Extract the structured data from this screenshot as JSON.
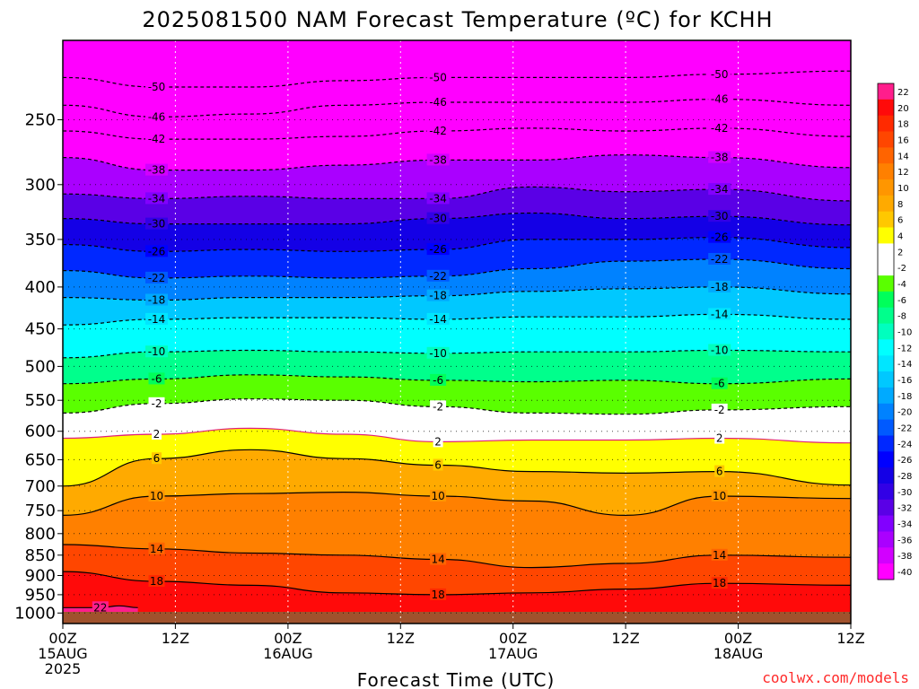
{
  "chart_data": {
    "type": "heatmap",
    "title": "2025081500 NAM Forecast Temperature (ºC) for KCHH",
    "xlabel": "Forecast Time (UTC)",
    "ylabel": "",
    "xlim": [
      0,
      84
    ],
    "ylim": [
      1030,
      200
    ],
    "y_scale": "log-pressure",
    "x_ticks": [
      {
        "x": 0,
        "lines": [
          "00Z",
          "15AUG",
          "2025"
        ]
      },
      {
        "x": 12,
        "lines": [
          "12Z"
        ]
      },
      {
        "x": 24,
        "lines": [
          "00Z",
          "16AUG"
        ]
      },
      {
        "x": 36,
        "lines": [
          "12Z"
        ]
      },
      {
        "x": 48,
        "lines": [
          "00Z",
          "17AUG"
        ]
      },
      {
        "x": 60,
        "lines": [
          "12Z"
        ]
      },
      {
        "x": 72,
        "lines": [
          "00Z",
          "18AUG"
        ]
      },
      {
        "x": 84,
        "lines": [
          "12Z"
        ]
      }
    ],
    "y_ticks": [
      250,
      300,
      350,
      400,
      450,
      500,
      550,
      600,
      650,
      700,
      750,
      800,
      850,
      900,
      950,
      1000
    ],
    "grid": true,
    "colorbar": {
      "placement": "right",
      "levels": [
        "22",
        "20",
        "18",
        "16",
        "14",
        "12",
        "10",
        "8",
        "6",
        "4",
        "2",
        "-2",
        "-4",
        "-6",
        "-8",
        "-10",
        "-12",
        "-14",
        "-16",
        "-18",
        "-20",
        "-22",
        "-24",
        "-26",
        "-28",
        "-30",
        "-32",
        "-34",
        "-36",
        "-38",
        "-40"
      ],
      "colors": [
        "#ff1e8c",
        "#ff0a0a",
        "#ff2a00",
        "#ff4600",
        "#ff6400",
        "#ff8000",
        "#ff9600",
        "#ffaa00",
        "#ffc800",
        "#ffff00",
        "#ffffff",
        "#ffffff",
        "#5aff00",
        "#00ff5a",
        "#00ff8c",
        "#00ffbe",
        "#00ffff",
        "#00e6ff",
        "#00c8ff",
        "#00aaff",
        "#0082ff",
        "#005aff",
        "#0028ff",
        "#0000ff",
        "#1400e6",
        "#3200e6",
        "#5a00e6",
        "#8200ff",
        "#aa00ff",
        "#d200ff",
        "#ff00ff"
      ]
    },
    "isotherm_levels": [
      -50,
      -46,
      -42,
      -38,
      -34,
      -30,
      -26,
      -22,
      -18,
      -14,
      -10,
      -6,
      -2,
      2,
      6,
      10,
      14,
      18,
      22
    ],
    "isotherms": [
      {
        "level": -50,
        "x": [
          0,
          10,
          20,
          30,
          40,
          50,
          60,
          70,
          84
        ],
        "p": [
          222,
          228,
          228,
          224,
          222,
          222,
          222,
          220,
          218
        ]
      },
      {
        "level": -46,
        "x": [
          0,
          10,
          20,
          30,
          40,
          50,
          60,
          70,
          84
        ],
        "p": [
          240,
          248,
          246,
          240,
          238,
          238,
          238,
          236,
          240
        ]
      },
      {
        "level": -42,
        "x": [
          0,
          10,
          20,
          30,
          40,
          50,
          60,
          70,
          84
        ],
        "p": [
          258,
          264,
          264,
          262,
          258,
          256,
          258,
          256,
          262
        ]
      },
      {
        "level": -38,
        "x": [
          0,
          10,
          20,
          30,
          40,
          50,
          60,
          70,
          84
        ],
        "p": [
          278,
          288,
          288,
          284,
          280,
          280,
          276,
          278,
          286
        ]
      },
      {
        "level": -34,
        "x": [
          0,
          10,
          20,
          30,
          40,
          50,
          60,
          70,
          84
        ],
        "p": [
          308,
          312,
          310,
          312,
          312,
          302,
          306,
          304,
          314
        ]
      },
      {
        "level": -30,
        "x": [
          0,
          10,
          20,
          30,
          40,
          50,
          60,
          70,
          84
        ],
        "p": [
          330,
          335,
          335,
          335,
          330,
          325,
          330,
          328,
          336
        ]
      },
      {
        "level": -26,
        "x": [
          0,
          10,
          20,
          30,
          40,
          50,
          60,
          70,
          84
        ],
        "p": [
          355,
          362,
          360,
          362,
          360,
          350,
          350,
          348,
          358
        ]
      },
      {
        "level": -22,
        "x": [
          0,
          10,
          20,
          30,
          40,
          50,
          60,
          70,
          84
        ],
        "p": [
          382,
          390,
          388,
          390,
          388,
          380,
          372,
          370,
          380
        ]
      },
      {
        "level": -18,
        "x": [
          0,
          10,
          20,
          30,
          40,
          50,
          60,
          70,
          84
        ],
        "p": [
          412,
          415,
          412,
          412,
          410,
          405,
          402,
          400,
          408
        ]
      },
      {
        "level": -14,
        "x": [
          0,
          10,
          20,
          30,
          40,
          50,
          60,
          70,
          84
        ],
        "p": [
          445,
          438,
          436,
          436,
          438,
          435,
          435,
          432,
          438
        ]
      },
      {
        "level": -10,
        "x": [
          0,
          10,
          20,
          30,
          40,
          50,
          60,
          70,
          84
        ],
        "p": [
          488,
          480,
          478,
          480,
          482,
          480,
          480,
          478,
          480
        ]
      },
      {
        "level": -6,
        "x": [
          0,
          10,
          20,
          30,
          40,
          50,
          60,
          70,
          84
        ],
        "p": [
          525,
          518,
          512,
          515,
          520,
          522,
          520,
          525,
          518
        ]
      },
      {
        "level": -2,
        "x": [
          0,
          10,
          20,
          30,
          40,
          50,
          60,
          70,
          84
        ],
        "p": [
          570,
          555,
          548,
          550,
          560,
          570,
          572,
          565,
          560
        ]
      },
      {
        "level": 2,
        "x": [
          0,
          10,
          20,
          30,
          40,
          50,
          60,
          70,
          84
        ],
        "p": [
          612,
          605,
          595,
          605,
          618,
          615,
          615,
          612,
          620
        ]
      },
      {
        "level": 6,
        "x": [
          0,
          10,
          20,
          30,
          40,
          50,
          60,
          70,
          84
        ],
        "p": [
          700,
          648,
          632,
          648,
          660,
          672,
          675,
          672,
          698
        ]
      },
      {
        "level": 10,
        "x": [
          0,
          10,
          20,
          30,
          40,
          50,
          60,
          70,
          84
        ],
        "p": [
          760,
          720,
          715,
          712,
          720,
          730,
          760,
          720,
          725
        ]
      },
      {
        "level": 14,
        "x": [
          0,
          10,
          20,
          30,
          40,
          50,
          60,
          70,
          84
        ],
        "p": [
          825,
          835,
          845,
          850,
          860,
          880,
          870,
          850,
          855
        ]
      },
      {
        "level": 18,
        "x": [
          0,
          10,
          20,
          30,
          40,
          50,
          60,
          70,
          84
        ],
        "p": [
          890,
          915,
          925,
          945,
          950,
          945,
          935,
          920,
          925
        ]
      },
      {
        "level": 22,
        "x": [
          0,
          4,
          6,
          8
        ],
        "p": [
          985,
          985,
          980,
          985
        ]
      }
    ],
    "annotations": [
      "coolwx.com/models"
    ]
  }
}
